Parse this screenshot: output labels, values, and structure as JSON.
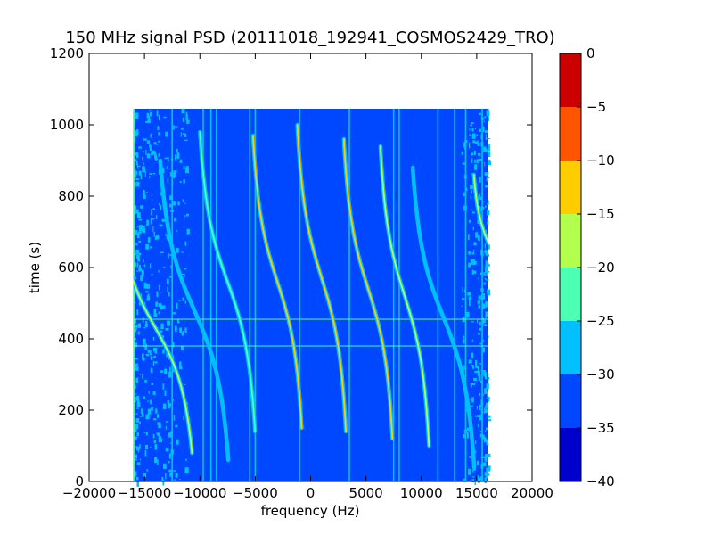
{
  "chart_data": {
    "type": "heatmap",
    "title": "150 MHz signal PSD (20111018_192941_COSMOS2429_TRO)",
    "xlabel": "frequency (Hz)",
    "ylabel": "time (s)",
    "xlim": [
      -20000,
      20000
    ],
    "ylim": [
      0,
      1200
    ],
    "x_ticks": [
      -20000,
      -15000,
      -10000,
      -5000,
      0,
      5000,
      10000,
      15000,
      20000
    ],
    "x_tick_labels": [
      "−20000",
      "−15000",
      "−10000",
      "−5000",
      "0",
      "5000",
      "10000",
      "15000",
      "20000"
    ],
    "y_ticks": [
      0,
      200,
      400,
      600,
      800,
      1000,
      1200
    ],
    "y_tick_labels": [
      "0",
      "200",
      "400",
      "600",
      "800",
      "1000",
      "1200"
    ],
    "data_extent": {
      "x": [
        -16000,
        16000
      ],
      "y": [
        0,
        1045
      ]
    },
    "colorbar": {
      "levels": [
        -40,
        -35,
        -30,
        -25,
        -20,
        -15,
        -10,
        -5,
        0
      ],
      "tick_labels": [
        "−40",
        "−35",
        "−30",
        "−25",
        "−20",
        "−15",
        "−10",
        "−5",
        "0"
      ],
      "colors": [
        "#0000cd",
        "#0048ff",
        "#00c0ff",
        "#4dffb3",
        "#b3ff4d",
        "#ffcc00",
        "#ff5500",
        "#cd0000"
      ]
    },
    "background_level": -32.5,
    "traces": [
      {
        "center_x": 12000,
        "center_y": 460,
        "amplitude": 3800,
        "half_height": 420,
        "level": -27
      },
      {
        "center_x": 8500,
        "center_y": 520,
        "amplitude": 3000,
        "half_height": 420,
        "level": -20
      },
      {
        "center_x": 5200,
        "center_y": 540,
        "amplitude": 3000,
        "half_height": 420,
        "level": -12
      },
      {
        "center_x": 1000,
        "center_y": 570,
        "amplitude": 3000,
        "half_height": 430,
        "level": -12
      },
      {
        "center_x": -3000,
        "center_y": 560,
        "amplitude": 3000,
        "half_height": 410,
        "level": -15
      },
      {
        "center_x": -7500,
        "center_y": 560,
        "amplitude": 3400,
        "half_height": 420,
        "level": -25
      },
      {
        "center_x": -10500,
        "center_y": 480,
        "amplitude": 4200,
        "half_height": 420,
        "level": -27
      },
      {
        "center_x": -14000,
        "center_y": 430,
        "amplitude": 4500,
        "half_height": 350,
        "level": -20
      },
      {
        "center_x": 16500,
        "center_y": 640,
        "amplitude": 2400,
        "half_height": 220,
        "level": -20
      }
    ],
    "vertical_lines": [
      {
        "x": -15900,
        "level": -22
      },
      {
        "x": -12500,
        "level": -27
      },
      {
        "x": -9700,
        "level": -27
      },
      {
        "x": -9000,
        "level": -27
      },
      {
        "x": -8500,
        "level": -27
      },
      {
        "x": -5500,
        "level": -27
      },
      {
        "x": -5000,
        "level": -27
      },
      {
        "x": -1000,
        "level": -27
      },
      {
        "x": 3500,
        "level": -27
      },
      {
        "x": 7500,
        "level": -27
      },
      {
        "x": 8000,
        "level": -27
      },
      {
        "x": 11500,
        "level": -27
      },
      {
        "x": 13000,
        "level": -27
      },
      {
        "x": 14000,
        "level": -27
      },
      {
        "x": 15500,
        "level": -27
      }
    ],
    "horizontal_lines": [
      {
        "y": 380,
        "level": -25
      },
      {
        "y": 455,
        "level": -25
      }
    ]
  }
}
